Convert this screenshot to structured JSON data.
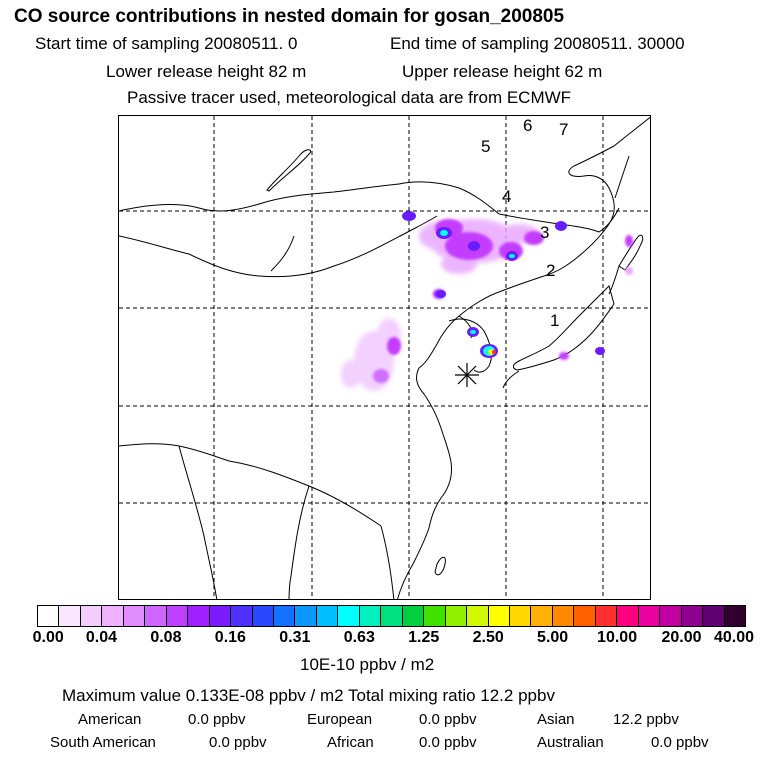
{
  "header": {
    "title": "CO  source contributions in nested domain for gosan_200805",
    "start_label": "Start time of sampling 20080511.     0",
    "end_label": "End time of sampling 20080511. 30000",
    "lower_label": "Lower release height   82 m",
    "upper_label": "Upper release height   62 m",
    "tracer_label": "Passive tracer used, meteorological data are from ECMWF"
  },
  "map": {
    "trajectory_labels": [
      "1",
      "2",
      "3",
      "4",
      "5",
      "6",
      "7"
    ],
    "receptor_marker": "asterisk-marker",
    "colors": {
      "land_line": "#000000",
      "grid_line": "#000000",
      "plume_light": "#e9a8ff",
      "plume_mid": "#c43cff",
      "plume_dark": "#6a1cff",
      "hotspot": "#00ffff",
      "peak": "#ffff00"
    }
  },
  "colorbar": {
    "colors": [
      "#ffffff",
      "#fbe6ff",
      "#f5ccff",
      "#efb2ff",
      "#e08cff",
      "#d066ff",
      "#c040ff",
      "#a020ff",
      "#7a1cff",
      "#5030ff",
      "#2848ff",
      "#1470ff",
      "#0a98ff",
      "#00c0ff",
      "#00ffff",
      "#00f0c0",
      "#00e080",
      "#00d040",
      "#40e000",
      "#90f000",
      "#d0f800",
      "#ffff00",
      "#ffd800",
      "#ffb000",
      "#ff8800",
      "#ff6000",
      "#ff3030",
      "#ff0080",
      "#e800a0",
      "#c000a0",
      "#900090",
      "#600070",
      "#300030"
    ],
    "ticks": [
      "0.00",
      "0.04",
      "0.08",
      "0.16",
      "0.31",
      "0.63",
      "1.25",
      "2.50",
      "5.00",
      "10.00",
      "20.00",
      "40.00"
    ],
    "units": "10E-10 ppbv / m2"
  },
  "summary": {
    "max_line": "Maximum value  0.133E-08 ppbv / m2     Total mixing ratio       12.2 ppbv",
    "american": "American",
    "american_val": "0.0 ppbv",
    "european": "European",
    "european_val": "0.0 ppbv",
    "asian": "Asian",
    "asian_val": "12.2 ppbv",
    "south_american": "South American",
    "south_american_val": "0.0 ppbv",
    "african": "African",
    "african_val": "0.0 ppbv",
    "australian": "Australian",
    "australian_val": "0.0 ppbv"
  }
}
